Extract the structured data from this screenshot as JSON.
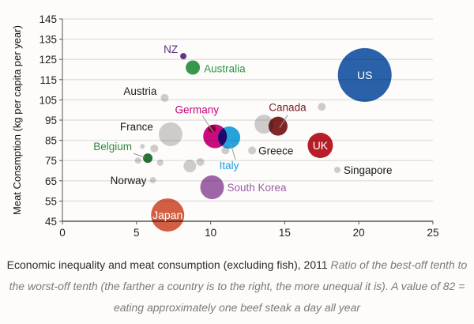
{
  "chart_data": {
    "type": "scatter",
    "subtype": "bubble",
    "title": "Economic inequality and meat consumption (excluding fish), 2011",
    "xlabel": "",
    "ylabel": "Meat Consmption (kg per capita per year)",
    "xlim": [
      0,
      25
    ],
    "ylim": [
      45,
      145
    ],
    "xticks": [
      "0",
      "5",
      "10",
      "15",
      "20",
      "25"
    ],
    "yticks": [
      "45",
      "55",
      "65",
      "75",
      "85",
      "95",
      "105",
      "115",
      "125",
      "135",
      "145"
    ],
    "grid": true,
    "points": [
      {
        "label": "US",
        "x": 20.4,
        "y": 117.3,
        "size": 1156,
        "color": "#1f5aa6",
        "label_inside": true
      },
      {
        "label": "Japan",
        "x": 7.1,
        "y": 48.1,
        "size": 441,
        "color": "#d2573a",
        "label_inside": true
      },
      {
        "label": "UK",
        "x": 17.4,
        "y": 82.5,
        "size": 256,
        "color": "#b5121b",
        "label_inside": true
      },
      {
        "label": "France",
        "x": 7.3,
        "y": 88.0,
        "size": 225,
        "color": "#cfcfcf"
      },
      {
        "label": "South Korea",
        "x": 10.1,
        "y": 61.8,
        "size": 225,
        "color": "#9b5ea6"
      },
      {
        "label": "Germany",
        "x": 10.3,
        "y": 87.0,
        "size": 225,
        "color": "#c8007a"
      },
      {
        "label": "Italy",
        "x": 11.25,
        "y": 86.4,
        "size": 196,
        "color": "#1aa0dc"
      },
      {
        "label": "",
        "x": 13.6,
        "y": 93.0,
        "size": 144,
        "color": "#cfcfcf"
      },
      {
        "label": "Canada",
        "x": 14.55,
        "y": 92.0,
        "size": 144,
        "color": "#7a1a1a"
      },
      {
        "label": "Australia",
        "x": 8.8,
        "y": 121.0,
        "size": 81,
        "color": "#2e9444"
      },
      {
        "label": "",
        "x": 8.6,
        "y": 72.3,
        "size": 64,
        "color": "#cfcfcf"
      },
      {
        "label": "Belgium",
        "x": 5.76,
        "y": 76.2,
        "size": 36,
        "color": "#1e6b30"
      },
      {
        "label": "Austria",
        "x": 6.9,
        "y": 106.0,
        "size": 25,
        "color": "#cfcfcf"
      },
      {
        "label": "",
        "x": 6.2,
        "y": 81.0,
        "size": 25,
        "color": "#cfcfcf"
      },
      {
        "label": "",
        "x": 9.3,
        "y": 74.3,
        "size": 25,
        "color": "#cfcfcf"
      },
      {
        "label": "",
        "x": 11.0,
        "y": 80.0,
        "size": 25,
        "color": "#cfcfcf"
      },
      {
        "label": "Greece",
        "x": 12.8,
        "y": 80.0,
        "size": 25,
        "color": "#cfcfcf"
      },
      {
        "label": "",
        "x": 17.5,
        "y": 101.6,
        "size": 25,
        "color": "#cfcfcf"
      },
      {
        "label": "",
        "x": 10.1,
        "y": 90.7,
        "size": 25,
        "color": "#a8005f"
      },
      {
        "label": "NZ",
        "x": 8.16,
        "y": 126.6,
        "size": 16,
        "color": "#5b2a86"
      },
      {
        "label": "Norway",
        "x": 6.1,
        "y": 65.3,
        "size": 16,
        "color": "#cfcfcf"
      },
      {
        "label": "Singapore",
        "x": 18.55,
        "y": 70.4,
        "size": 16,
        "color": "#cfcfcf"
      },
      {
        "label": "",
        "x": 5.1,
        "y": 75.0,
        "size": 16,
        "color": "#cfcfcf"
      },
      {
        "label": "",
        "x": 6.6,
        "y": 74.0,
        "size": 16,
        "color": "#cfcfcf"
      },
      {
        "label": "",
        "x": 5.4,
        "y": 82.0,
        "size": 9,
        "color": "#cfcfcf"
      }
    ],
    "label_colors": {
      "NZ": "#5b2a86",
      "Australia": "#2e9444",
      "Austria": "#1a1a1a",
      "Germany": "#c8007a",
      "Canada": "#7a1a1a",
      "France": "#1a1a1a",
      "Belgium": "#2e8a40",
      "Greece": "#1a1a1a",
      "Italy": "#1aa0dc",
      "Norway": "#1a1a1a",
      "Singapore": "#1a1a1a",
      "South Korea": "#9b5ea6",
      "US": "#ffffff",
      "Japan": "#ffffff",
      "UK": "#ffffff"
    }
  },
  "caption": {
    "title": "Economic inequality and meat consumption (excluding fish), 2011",
    "subtitle": "Ratio of the best-off tenth to the worst-off tenth (the farther a country is to the right, the more unequal it is). A value of 82 = eating approximately one beef steak a day all year"
  }
}
